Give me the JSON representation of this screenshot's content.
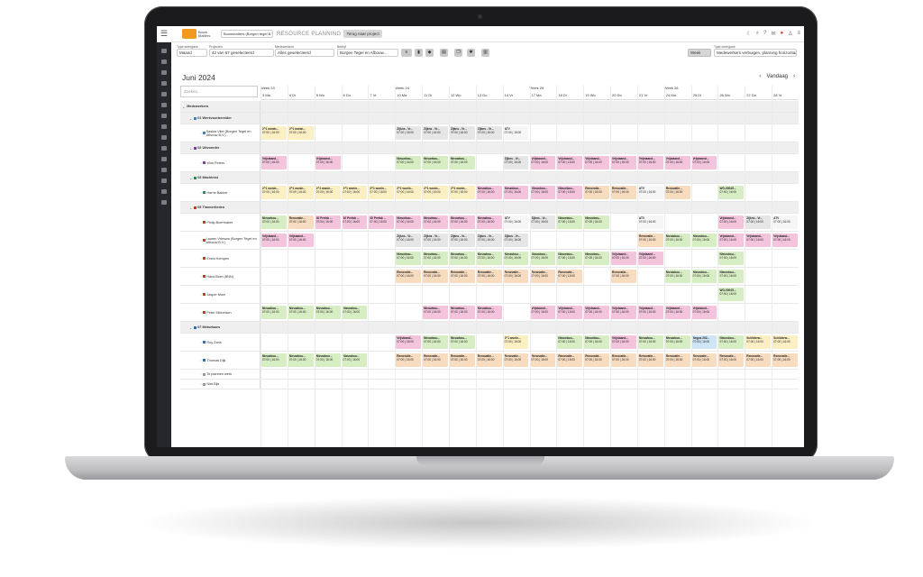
{
  "app": {
    "logo_text": "Bouw Matters",
    "company_select": "Bouwmatters (Borgen tegel B.V.)",
    "title": "RESOURCE PLANNING",
    "back_button": "Terug naar project"
  },
  "filters": {
    "type_weergave": {
      "label": "Type weergave",
      "value": "Maand"
    },
    "projecten": {
      "label": "Projecten",
      "value": "42 van 67 geselecteerd"
    },
    "medewerkers": {
      "label": "Medewerkers",
      "value": "Alles geselecteerd"
    },
    "bedrijf": {
      "label": "Bedrijf",
      "value": "Borgen Tegel en Afbouw..."
    },
    "weeks_button": "Week",
    "type_weergave2": {
      "label": "Type weergave",
      "value": "Medewerkers verbuigen, planning horizontaal"
    }
  },
  "calendar": {
    "month_title": "Juni 2024",
    "today_label": "Vandaag",
    "search_placeholder": "Zoeken...",
    "weeks": [
      "Week 23",
      "Week 24",
      "Week 25",
      "Week 26"
    ],
    "days": [
      "3 Ma",
      "4 Di",
      "5 Wo",
      "6 Do",
      "7 Vr",
      "10 Ma",
      "11 Di",
      "12 Wo",
      "13 Do",
      "14 Vr",
      "17 Ma",
      "18 Di",
      "19 Wo",
      "20 Do",
      "21 Vr",
      "24 Ma",
      "25 Di",
      "26 Wo",
      "27 Do",
      "28 Vr"
    ]
  },
  "rows": [
    {
      "kind": "section",
      "label": "Medewerkers"
    },
    {
      "kind": "group",
      "label": "01 Werkvoorbereider",
      "color": "#3b82c4"
    },
    {
      "kind": "person",
      "label": "Saskia Vliet (Borgen Tegel en Afbouw B.V.)",
      "color": "#3b82c4",
      "cells": [
        [
          0,
          "c-y",
          "2^1 wonin...",
          "07:00 | 16:00"
        ],
        [
          1,
          "c-y",
          "2^1 wonin...",
          "07:00 | 16:00"
        ],
        [
          5,
          "c-gr",
          "Zijkns - Vr...",
          "07:00 | 16:00"
        ],
        [
          6,
          "c-gr",
          "Zijkns - Vr...",
          "07:00 | 16:00"
        ],
        [
          7,
          "c-gr",
          "Zijkns - Vr...",
          "07:00 | 16:00"
        ],
        [
          8,
          "c-gr",
          "Zijkns - Vr...",
          "07:00 | 16:00"
        ],
        [
          9,
          "c-w",
          "ATV",
          "07:00 | 16:00"
        ]
      ]
    },
    {
      "kind": "group",
      "label": "02 Uitvoerder",
      "color": "#7b3fa0"
    },
    {
      "kind": "person",
      "label": "Wim Peters",
      "color": "#7b3fa0",
      "cells": [
        [
          0,
          "c-p",
          "Vrijstaand...",
          "07:00 | 16:00"
        ],
        [
          2,
          "c-p",
          "Vrijstaand...",
          "07:00 | 16:00"
        ],
        [
          5,
          "c-g",
          "Nieuwbou...",
          "07:00 | 16:00"
        ],
        [
          6,
          "c-g",
          "Nieuwbou...",
          "07:00 | 16:00"
        ],
        [
          7,
          "c-g",
          "Nieuwbou...",
          "07:00 | 16:00"
        ],
        [
          9,
          "c-gr",
          "Zijkns - Vr...",
          "07:00 | 16:00"
        ],
        [
          10,
          "c-p",
          "Vrijstaand...",
          "07:00 | 16:00"
        ],
        [
          11,
          "c-p",
          "Vrijstaand...",
          "07:00 | 16:00"
        ],
        [
          12,
          "c-p",
          "Vrijstaand...",
          "07:00 | 16:00"
        ],
        [
          13,
          "c-p",
          "Vrijstaand...",
          "07:00 | 16:00"
        ],
        [
          14,
          "c-p",
          "Vrijstaand...",
          "07:00 | 16:00"
        ],
        [
          15,
          "c-p",
          "Vrijstaand...",
          "07:00 | 16:00"
        ],
        [
          16,
          "c-p",
          "Vrijstaand...",
          "07:00 | 16:00"
        ]
      ]
    },
    {
      "kind": "group",
      "label": "03 Machinist",
      "color": "#2e8b57"
    },
    {
      "kind": "person",
      "label": "Harrie Bakker",
      "color": "#2e8b57",
      "cells": [
        [
          0,
          "c-y",
          "2^1 wonin...",
          "07:00 | 16:00"
        ],
        [
          1,
          "c-y",
          "2^1 wonin...",
          "07:00 | 16:00"
        ],
        [
          2,
          "c-y",
          "2^1 wonin...",
          "07:00 | 16:00"
        ],
        [
          3,
          "c-y",
          "2^1 wonin...",
          "07:00 | 16:00"
        ],
        [
          4,
          "c-y",
          "2^1 wonin...",
          "07:00 | 16:00"
        ],
        [
          5,
          "c-y",
          "2^1 wonin...",
          "07:00 | 16:00"
        ],
        [
          6,
          "c-y",
          "2^1 wonin...",
          "07:00 | 16:00"
        ],
        [
          7,
          "c-y",
          "2^1 wonin...",
          "07:00 | 16:00"
        ],
        [
          8,
          "c-p",
          "Nieuwbou...",
          "07:00 | 16:00"
        ],
        [
          9,
          "c-p",
          "Nieuwbou...",
          "07:00 | 16:00"
        ],
        [
          10,
          "c-p",
          "Nieuwbou...",
          "07:00 | 16:00"
        ],
        [
          11,
          "c-p",
          "Nieuwbou...",
          "07:00 | 16:00"
        ],
        [
          12,
          "c-o",
          "Renovatie...",
          "07:00 | 16:00"
        ],
        [
          13,
          "c-o",
          "Renovatie...",
          "07:00 | 16:00"
        ],
        [
          14,
          "c-w",
          "ATV",
          "07:00 | 16:00"
        ],
        [
          15,
          "c-o",
          "Renovatie...",
          "07:00 | 16:00"
        ],
        [
          17,
          "c-g",
          "WO-00045...",
          "07:00 | 16:00"
        ]
      ]
    },
    {
      "kind": "group",
      "label": "05 Timmerlieden",
      "color": "#c0392b"
    },
    {
      "kind": "person",
      "label": "Philip Boermaker",
      "color": "#c0392b",
      "cells": [
        [
          0,
          "c-g",
          "Nieuwbou...",
          "07:00 | 16:00"
        ],
        [
          1,
          "c-o",
          "Renovatie...",
          "07:00 | 16:00"
        ],
        [
          2,
          "c-p",
          "40 Prefab ...",
          "07:00 | 16:00"
        ],
        [
          3,
          "c-p",
          "40 Prefab ...",
          "07:00 | 16:00"
        ],
        [
          4,
          "c-p",
          "40 Prefab ...",
          "07:00 | 16:00"
        ],
        [
          5,
          "c-p",
          "Nieuwbou...",
          "07:00 | 16:00"
        ],
        [
          6,
          "c-p",
          "Nieuwbou...",
          "07:00 | 16:00"
        ],
        [
          7,
          "c-p",
          "Nieuwbou...",
          "07:00 | 16:00"
        ],
        [
          8,
          "c-p",
          "Nieuwbou...",
          "07:00 | 16:00"
        ],
        [
          9,
          "c-w",
          "ATV",
          "07:00 | 16:00"
        ],
        [
          10,
          "c-gr",
          "Zijkns - Vr...",
          "07:00 | 16:00"
        ],
        [
          11,
          "c-g",
          "Nieuwbou...",
          "07:00 | 16:00"
        ],
        [
          12,
          "c-g",
          "Nieuwbou...",
          "07:00 | 16:00"
        ],
        [
          14,
          "c-w",
          "ATV",
          "07:00 | 16:00"
        ],
        [
          17,
          "c-p",
          "Vrijstaand...",
          "07:00 | 16:00"
        ],
        [
          18,
          "c-gr",
          "Zijkns - Vr...",
          "07:00 | 16:00"
        ],
        [
          19,
          "c-w",
          "ATV",
          "07:00 | 16:00"
        ]
      ]
    },
    {
      "kind": "person",
      "label": "Lauren Vrieswa (Borgen Tegel en Afbouw B.V.)",
      "color": "#c0392b",
      "cells": [
        [
          0,
          "c-p",
          "Vrijstaand...",
          "07:00 | 16:00"
        ],
        [
          1,
          "c-p",
          "Vrijstaand...",
          "07:00 | 16:00"
        ],
        [
          5,
          "c-gr",
          "Zijkns - Vr...",
          "07:00 | 16:00"
        ],
        [
          6,
          "c-gr",
          "Zijkns - Vr...",
          "07:00 | 16:00"
        ],
        [
          7,
          "c-gr",
          "Zijkns - Vr...",
          "07:00 | 16:00"
        ],
        [
          8,
          "c-gr",
          "Zijkns - Vr...",
          "07:00 | 16:00"
        ],
        [
          9,
          "c-gr",
          "Zijkns - Vr...",
          "07:00 | 16:00"
        ],
        [
          14,
          "c-o",
          "Renovatie...",
          "07:00 | 16:00"
        ],
        [
          15,
          "c-g",
          "Nieuwbou...",
          "07:00 | 16:00"
        ],
        [
          16,
          "c-g",
          "Nieuwbou...",
          "07:00 | 16:00"
        ],
        [
          17,
          "c-p",
          "Vrijstaand...",
          "07:00 | 16:00"
        ],
        [
          18,
          "c-p",
          "Vrijstaand...",
          "07:00 | 16:00"
        ],
        [
          19,
          "c-p",
          "Vrijstaand...",
          "07:00 | 16:00"
        ]
      ]
    },
    {
      "kind": "person",
      "label": "Erwin Kempen",
      "color": "#c0392b",
      "cells": [
        [
          5,
          "c-g",
          "Nieuwbou...",
          "07:00 | 16:00"
        ],
        [
          6,
          "c-g",
          "Nieuwbou...",
          "07:00 | 16:00"
        ],
        [
          7,
          "c-g",
          "Nieuwbou...",
          "07:00 | 16:00"
        ],
        [
          8,
          "c-g",
          "Nieuwbou...",
          "07:00 | 16:00"
        ],
        [
          9,
          "c-g",
          "Nieuwbou...",
          "07:00 | 16:00"
        ],
        [
          10,
          "c-g",
          "Nieuwbou...",
          "07:00 | 16:00"
        ],
        [
          11,
          "c-g",
          "Nieuwbou...",
          "07:00 | 16:00"
        ],
        [
          12,
          "c-g",
          "Nieuwbou...",
          "07:00 | 16:00"
        ],
        [
          13,
          "c-p",
          "Vrijstaand...",
          "07:00 | 16:00"
        ],
        [
          14,
          "c-p",
          "Vrijstaand...",
          "07:00 | 16:00"
        ],
        [
          17,
          "c-g",
          "Nieuwbou...",
          "07:00 | 16:00"
        ]
      ]
    },
    {
      "kind": "person",
      "label": "Hans Boer (BNN)",
      "color": "#c0392b",
      "cells": [
        [
          5,
          "c-o",
          "Renovatie...",
          "07:00 | 16:00"
        ],
        [
          6,
          "c-o",
          "Renovatie...",
          "07:00 | 16:00"
        ],
        [
          7,
          "c-o",
          "Renovatie...",
          "07:00 | 16:00"
        ],
        [
          8,
          "c-o",
          "Renovatie...",
          "07:00 | 16:00"
        ],
        [
          9,
          "c-o",
          "Renovatie...",
          "07:00 | 16:00"
        ],
        [
          10,
          "c-o",
          "Renovatie...",
          "07:00 | 16:00"
        ],
        [
          11,
          "c-o",
          "Renovatie...",
          "07:00 | 16:00"
        ],
        [
          13,
          "c-o",
          "Renovatie...",
          "07:00 | 16:00"
        ],
        [
          15,
          "c-g",
          "Nieuwbou...",
          "07:00 | 16:00"
        ],
        [
          16,
          "c-g",
          "Nieuwbou...",
          "07:00 | 16:00"
        ],
        [
          17,
          "c-g",
          "Nieuwbou...",
          "07:00 | 16:00"
        ]
      ]
    },
    {
      "kind": "person",
      "label": "Jasper Mom",
      "color": "#c0392b",
      "cells": [
        [
          17,
          "c-g",
          "WO-00045...",
          "07:00 | 16:00"
        ]
      ]
    },
    {
      "kind": "person",
      "label": "Peter Michelsen",
      "color": "#c0392b",
      "cells": [
        [
          0,
          "c-g",
          "Nieuwbou...",
          "07:00 | 16:00"
        ],
        [
          1,
          "c-g",
          "Nieuwbou...",
          "07:00 | 16:00"
        ],
        [
          2,
          "c-g",
          "Nieuwbou...",
          "07:00 | 16:00"
        ],
        [
          3,
          "c-g",
          "Nieuwbou...",
          "07:00 | 16:00"
        ],
        [
          6,
          "c-p",
          "Nieuwbou...",
          "07:00 | 16:00"
        ],
        [
          7,
          "c-p",
          "Nieuwbou...",
          "07:00 | 16:00"
        ],
        [
          8,
          "c-p",
          "Nieuwbou...",
          "07:00 | 16:00"
        ],
        [
          10,
          "c-p",
          "Vrijstaand...",
          "07:00 | 16:00"
        ],
        [
          11,
          "c-p",
          "Vrijstaand...",
          "07:00 | 16:00"
        ],
        [
          12,
          "c-p",
          "Vrijstaand...",
          "07:00 | 16:00"
        ],
        [
          13,
          "c-p",
          "Vrijstaand...",
          "07:00 | 16:00"
        ],
        [
          14,
          "c-p",
          "Vrijstaand...",
          "07:00 | 16:00"
        ],
        [
          15,
          "c-p",
          "Vrijstaand...",
          "07:00 | 16:00"
        ],
        [
          16,
          "c-p",
          "Vrijstaand...",
          "07:00 | 16:00"
        ]
      ]
    },
    {
      "kind": "group",
      "label": "07 Metselaars",
      "color": "#2d6fb6"
    },
    {
      "kind": "person",
      "label": "Roy Zaris",
      "color": "#2d6fb6",
      "cells": [
        [
          5,
          "c-p",
          "Vrijstaand...",
          "07:00 | 16:00"
        ],
        [
          6,
          "c-g",
          "Nieuwbou...",
          "07:00 | 16:00"
        ],
        [
          7,
          "c-g",
          "Nieuwbou...",
          "07:00 | 16:00"
        ],
        [
          9,
          "c-y",
          "2^1 wonin...",
          "07:00 | 16:00"
        ],
        [
          11,
          "c-g",
          "Nieuwbou...",
          "07:00 | 16:00"
        ],
        [
          12,
          "c-g",
          "Nieuwbou...",
          "07:00 | 16:00"
        ],
        [
          13,
          "c-p",
          "Vrijstaand...",
          "07:00 | 16:00"
        ],
        [
          14,
          "c-g",
          "Nieuwbou...",
          "07:00 | 16:00"
        ],
        [
          15,
          "c-g",
          "Nieuwbou...",
          "07:00 | 16:00"
        ],
        [
          16,
          "c-b",
          "Negus 202...",
          "07:00 | 16:00"
        ],
        [
          17,
          "c-g",
          "Nieuwbou...",
          "07:00 | 16:00"
        ],
        [
          18,
          "c-y",
          "Schilderw...",
          "07:00 | 16:00"
        ],
        [
          19,
          "c-y",
          "Schilderw...",
          "07:00 | 16:00"
        ]
      ]
    },
    {
      "kind": "person",
      "label": "Thomas Dijk",
      "color": "#2d6fb6",
      "cells": [
        [
          0,
          "c-g",
          "Nieuwbou...",
          "07:00 | 16:00"
        ],
        [
          1,
          "c-g",
          "Nieuwbou...",
          "07:00 | 16:00"
        ],
        [
          2,
          "c-g",
          "Nieuwbou...",
          "07:00 | 16:00"
        ],
        [
          3,
          "c-g",
          "Nieuwbou...",
          "07:00 | 16:00"
        ],
        [
          5,
          "c-o",
          "Renovatie...",
          "07:00 | 16:00"
        ],
        [
          6,
          "c-o",
          "Renovatie...",
          "07:00 | 16:00"
        ],
        [
          7,
          "c-o",
          "Renovatie...",
          "07:00 | 16:00"
        ],
        [
          8,
          "c-o",
          "Renovatie...",
          "07:00 | 16:00"
        ],
        [
          9,
          "c-o",
          "Renovatie...",
          "07:00 | 16:00"
        ],
        [
          10,
          "c-o",
          "Renovatie...",
          "07:00 | 16:00"
        ],
        [
          11,
          "c-o",
          "Renovatie...",
          "07:00 | 16:00"
        ],
        [
          12,
          "c-o",
          "Renovatie...",
          "07:00 | 16:00"
        ],
        [
          13,
          "c-o",
          "Renovatie...",
          "07:00 | 16:00"
        ],
        [
          14,
          "c-o",
          "Renovatie...",
          "07:00 | 16:00"
        ],
        [
          15,
          "c-o",
          "Renovatie...",
          "07:00 | 16:00"
        ],
        [
          16,
          "c-o",
          "Renovatie...",
          "07:00 | 16:00"
        ],
        [
          17,
          "c-o",
          "Renovatie...",
          "07:00 | 16:00"
        ],
        [
          18,
          "c-o",
          "Renovatie...",
          "07:00 | 16:00"
        ],
        [
          19,
          "c-o",
          "Renovatie...",
          "07:00 | 16:00"
        ]
      ]
    },
    {
      "kind": "person",
      "label": "Te plannen werk",
      "color": "#999999",
      "cells": []
    },
    {
      "kind": "person",
      "label": "Niet Bijs",
      "color": "#999999",
      "cells": []
    }
  ]
}
